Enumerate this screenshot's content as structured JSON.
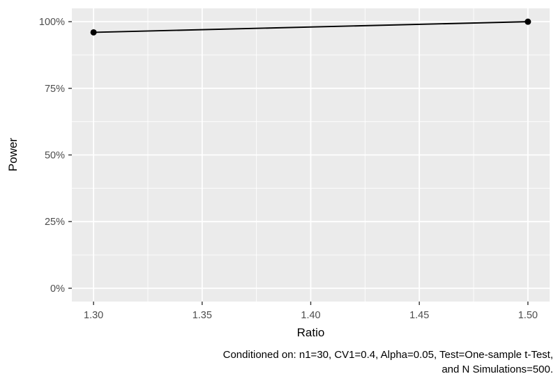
{
  "chart_data": {
    "type": "line",
    "title": "",
    "xlabel": "Ratio",
    "ylabel": "Power",
    "series": [
      {
        "name": "Power",
        "x": [
          1.3,
          1.5
        ],
        "y": [
          0.96,
          1.0
        ]
      }
    ],
    "xlim": [
      1.29,
      1.51
    ],
    "ylim": [
      -0.05,
      1.05
    ],
    "x_ticks": [
      {
        "value": 1.3,
        "label": "1.30"
      },
      {
        "value": 1.35,
        "label": "1.35"
      },
      {
        "value": 1.4,
        "label": "1.40"
      },
      {
        "value": 1.45,
        "label": "1.45"
      },
      {
        "value": 1.5,
        "label": "1.50"
      }
    ],
    "y_ticks": [
      {
        "value": 0.0,
        "label": "0%"
      },
      {
        "value": 0.25,
        "label": "25%"
      },
      {
        "value": 0.5,
        "label": "50%"
      },
      {
        "value": 0.75,
        "label": "75%"
      },
      {
        "value": 1.0,
        "label": "100%"
      }
    ],
    "x_minor": [
      1.325,
      1.375,
      1.425,
      1.475
    ],
    "y_minor": [
      0.125,
      0.375,
      0.625,
      0.875
    ],
    "grid": "on",
    "legend": "none",
    "caption_lines": [
      "Conditioned on: n1=30, CV1=0.4, Alpha=0.05, Test=One-sample t-Test,",
      "and N Simulations=500."
    ],
    "colors": {
      "panel_background": "#EBEBEB",
      "grid_major": "#FFFFFF",
      "grid_minor": "#FFFFFF",
      "tick_mark": "#333333",
      "tick_label": "#4D4D4D",
      "line": "#000000",
      "point": "#000000",
      "text": "#000000",
      "plot_background": "#FFFFFF"
    }
  }
}
